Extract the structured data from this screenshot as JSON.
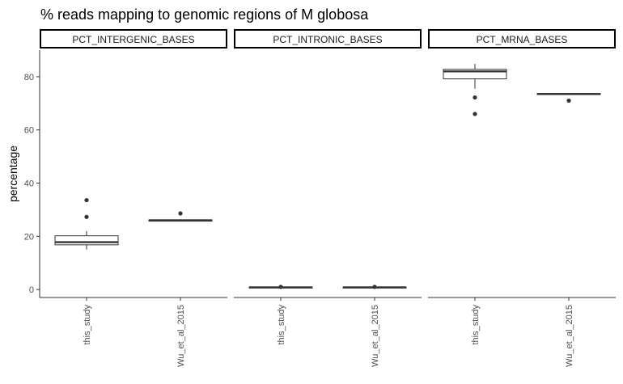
{
  "chart_data": {
    "type": "boxplot",
    "title": "% reads mapping to genomic regions of M globosa",
    "xlabel": "",
    "ylabel": "percentage",
    "ylim": [
      -3,
      90
    ],
    "y_ticks": [
      0,
      20,
      40,
      60,
      80
    ],
    "categories": [
      "this_study",
      "Wu_et_al_2015"
    ],
    "grid": false,
    "legend": "none",
    "colors": {
      "box_fill": "#ffffff",
      "box_line": "#333333",
      "point": "#333333",
      "axis": "#333333",
      "strip_border": "#000000"
    },
    "facets": [
      {
        "label": "PCT_INTERGENIC_BASES",
        "boxes": [
          {
            "category": "this_study",
            "min": 15.0,
            "q1": 16.8,
            "median": 17.8,
            "q3": 20.2,
            "max": 22.0,
            "outliers": [
              27.3,
              33.6
            ]
          },
          {
            "category": "Wu_et_al_2015",
            "min": 25.6,
            "q1": 25.7,
            "median": 26.0,
            "q3": 26.2,
            "max": 26.4,
            "outliers": [
              28.6
            ]
          }
        ]
      },
      {
        "label": "PCT_INTRONIC_BASES",
        "boxes": [
          {
            "category": "this_study",
            "min": 0.5,
            "q1": 0.6,
            "median": 0.8,
            "q3": 0.9,
            "max": 1.0,
            "outliers": [
              1.0
            ]
          },
          {
            "category": "Wu_et_al_2015",
            "min": 0.5,
            "q1": 0.6,
            "median": 0.8,
            "q3": 0.9,
            "max": 1.0,
            "outliers": [
              1.0
            ]
          }
        ]
      },
      {
        "label": "PCT_MRNA_BASES",
        "boxes": [
          {
            "category": "this_study",
            "min": 75.5,
            "q1": 79.2,
            "median": 82.0,
            "q3": 82.8,
            "max": 84.8,
            "outliers": [
              72.2,
              66.0
            ]
          },
          {
            "category": "Wu_et_al_2015",
            "min": 73.2,
            "q1": 73.3,
            "median": 73.5,
            "q3": 73.7,
            "max": 73.8,
            "outliers": [
              71.0
            ]
          }
        ]
      }
    ]
  }
}
